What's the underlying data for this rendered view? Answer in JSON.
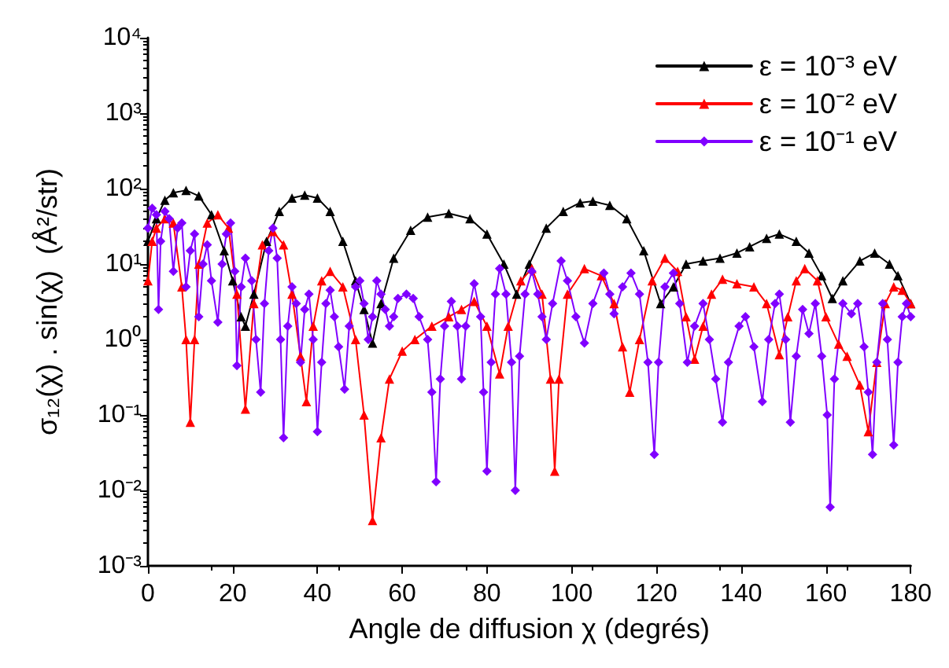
{
  "chart_data": {
    "type": "line",
    "xlabel": "Angle de diffusion χ (degrés)",
    "ylabel": "σ₁₂(χ) . sin(χ)  (Å²/str)",
    "xlim": [
      0,
      180
    ],
    "xticks": [
      0,
      20,
      40,
      60,
      80,
      100,
      120,
      140,
      160,
      180
    ],
    "ylim": [
      0.001,
      10000
    ],
    "log": "y",
    "yticks": [
      {
        "value": 0.001,
        "label": "10⁻³"
      },
      {
        "value": 0.01,
        "label": "10⁻²"
      },
      {
        "value": 0.1,
        "label": "10⁻¹"
      },
      {
        "value": 1,
        "label": "10⁰"
      },
      {
        "value": 10,
        "label": "10¹"
      },
      {
        "value": 100,
        "label": "10²"
      },
      {
        "value": 1000,
        "label": "10³"
      },
      {
        "value": 10000,
        "label": "10⁴"
      }
    ],
    "grid": false,
    "legend": "top right",
    "line_style": "solid",
    "series": [
      {
        "name": "ε = 10⁻³ eV",
        "color": "#000000",
        "marker": "triangle",
        "x": [
          0,
          2,
          4,
          6,
          9,
          12,
          15,
          18,
          20,
          22,
          23,
          25,
          28,
          31,
          34,
          37,
          40,
          43,
          46,
          49,
          51,
          53,
          55,
          58,
          62,
          66,
          71,
          76,
          80,
          84,
          87,
          90,
          94,
          98,
          102,
          105,
          109,
          113,
          117,
          121,
          124,
          127,
          131,
          135,
          139,
          142,
          146,
          149,
          153,
          156,
          159,
          161.5,
          164,
          168,
          171.5,
          175,
          177,
          180
        ],
        "values": [
          20,
          40,
          70,
          88,
          95,
          80,
          45,
          15,
          6,
          2,
          1.5,
          4,
          20,
          50,
          75,
          82,
          75,
          50,
          20,
          6,
          2.5,
          0.9,
          3,
          12,
          28,
          42,
          47,
          40,
          25,
          10,
          4,
          10,
          30,
          50,
          65,
          68,
          60,
          40,
          15,
          3,
          5,
          10,
          11,
          12,
          14,
          17,
          22,
          25,
          20,
          14,
          7,
          3.5,
          6,
          11,
          14,
          10,
          7,
          3
        ]
      },
      {
        "name": "ε = 10⁻² eV",
        "color": "#ff0000",
        "marker": "triangle",
        "x": [
          0,
          1,
          2,
          4,
          6,
          8,
          9,
          10,
          11,
          12,
          14,
          16.5,
          19,
          21,
          23,
          25,
          27,
          29.5,
          32,
          34,
          36,
          37.4,
          39,
          41,
          43,
          46,
          49,
          51,
          53,
          55,
          57,
          60,
          63,
          67,
          71,
          74,
          77,
          80,
          83,
          85,
          88,
          90.6,
          93,
          95,
          96,
          97,
          99,
          103,
          107,
          110,
          112,
          113.7,
          116,
          119,
          122,
          125,
          127,
          129,
          131,
          133,
          135.6,
          139,
          143,
          146,
          149,
          151,
          153,
          155,
          158,
          160,
          163,
          165,
          168,
          170,
          172,
          174,
          176,
          178,
          180
        ],
        "values": [
          6,
          20,
          30,
          40,
          35,
          5,
          1,
          0.08,
          1,
          10,
          35,
          45,
          30,
          4,
          0.12,
          3,
          18,
          27,
          18,
          4,
          0.6,
          0.15,
          1.5,
          6,
          8,
          5,
          1,
          0.1,
          0.004,
          0.05,
          0.3,
          0.7,
          1,
          1.5,
          2,
          2.5,
          3.2,
          1.5,
          0.35,
          1.5,
          6,
          8.7,
          4,
          0.3,
          0.018,
          0.3,
          4,
          8.7,
          7,
          3,
          0.8,
          0.2,
          1,
          6,
          12,
          8,
          2,
          0.55,
          1.5,
          4,
          6.3,
          5.5,
          5,
          3,
          0.63,
          2,
          6,
          8.7,
          6,
          2,
          0.87,
          0.6,
          0.25,
          0.06,
          0.5,
          3,
          5,
          4.5,
          3
        ]
      },
      {
        "name": "ε = 10⁻¹ eV",
        "color": "#8000ff",
        "marker": "diamond",
        "x": [
          0,
          1,
          2,
          2.5,
          3,
          4,
          5,
          6,
          7,
          8,
          9,
          10,
          11,
          12,
          13,
          14,
          15,
          16.5,
          17.5,
          18.5,
          19.5,
          20.5,
          21,
          22,
          23,
          24.5,
          25.5,
          26.6,
          27.5,
          28.5,
          29.5,
          30.5,
          31.3,
          32,
          33,
          34,
          35,
          36,
          37,
          38,
          39,
          40,
          41,
          42,
          43,
          44,
          45,
          46.4,
          47.5,
          49,
          50,
          51,
          52,
          53,
          54,
          55,
          56,
          57,
          58,
          59,
          61,
          62.6,
          64,
          66,
          67,
          68,
          69,
          70,
          71.6,
          73,
          74,
          75,
          77,
          78.5,
          79.2,
          80,
          81,
          82,
          83,
          84.5,
          85.8,
          86.7,
          87.7,
          89,
          90.6,
          92,
          93,
          94,
          95.5,
          97.5,
          99,
          101,
          103,
          105,
          107.6,
          109,
          110,
          112,
          114,
          116,
          118,
          119.5,
          120.5,
          122,
          124,
          125.5,
          127.3,
          129,
          131,
          132.5,
          134,
          135.6,
          137,
          139.5,
          141,
          143,
          145,
          146.5,
          148,
          149,
          150.5,
          151.6,
          153,
          154.5,
          156,
          157.5,
          159,
          160.3,
          161,
          162,
          164,
          166,
          167.5,
          169,
          170,
          171,
          172,
          173.4,
          174.5,
          176,
          177,
          178,
          179,
          180
        ],
        "values": [
          30,
          55,
          45,
          2.5,
          20,
          50,
          40,
          8,
          30,
          35,
          5,
          15,
          25,
          2,
          10,
          18,
          6,
          1.7,
          10,
          25,
          35,
          8,
          0.45,
          5,
          12,
          6,
          1,
          0.2,
          3,
          15,
          30,
          12,
          1,
          0.05,
          1.5,
          5,
          3,
          0.5,
          2.5,
          4,
          1,
          0.06,
          0.5,
          3,
          4.5,
          2,
          0.8,
          0.22,
          1.5,
          5,
          6,
          3,
          1,
          2,
          6,
          4,
          2.5,
          1.5,
          2,
          3.5,
          4,
          3.5,
          2,
          1,
          0.2,
          0.013,
          0.3,
          1.5,
          3.2,
          1.5,
          0.3,
          1.5,
          5.5,
          2,
          0.2,
          0.018,
          0.5,
          4,
          8.7,
          4,
          0.5,
          0.01,
          0.6,
          4,
          8,
          4,
          2,
          1,
          3,
          11,
          6,
          2,
          0.9,
          3,
          7.6,
          4,
          2.2,
          5,
          7.6,
          4,
          0.5,
          0.03,
          0.5,
          5,
          7.6,
          3,
          0.5,
          1.5,
          3,
          1,
          0.3,
          0.08,
          0.5,
          1.5,
          2,
          0.8,
          0.15,
          1,
          3,
          4,
          1,
          0.08,
          0.6,
          2.5,
          1.2,
          3,
          0.6,
          0.1,
          0.006,
          0.3,
          3,
          2.2,
          3,
          0.8,
          0.2,
          0.03,
          0.5,
          3,
          1,
          0.04,
          0.5,
          2,
          3,
          2
        ]
      }
    ]
  }
}
